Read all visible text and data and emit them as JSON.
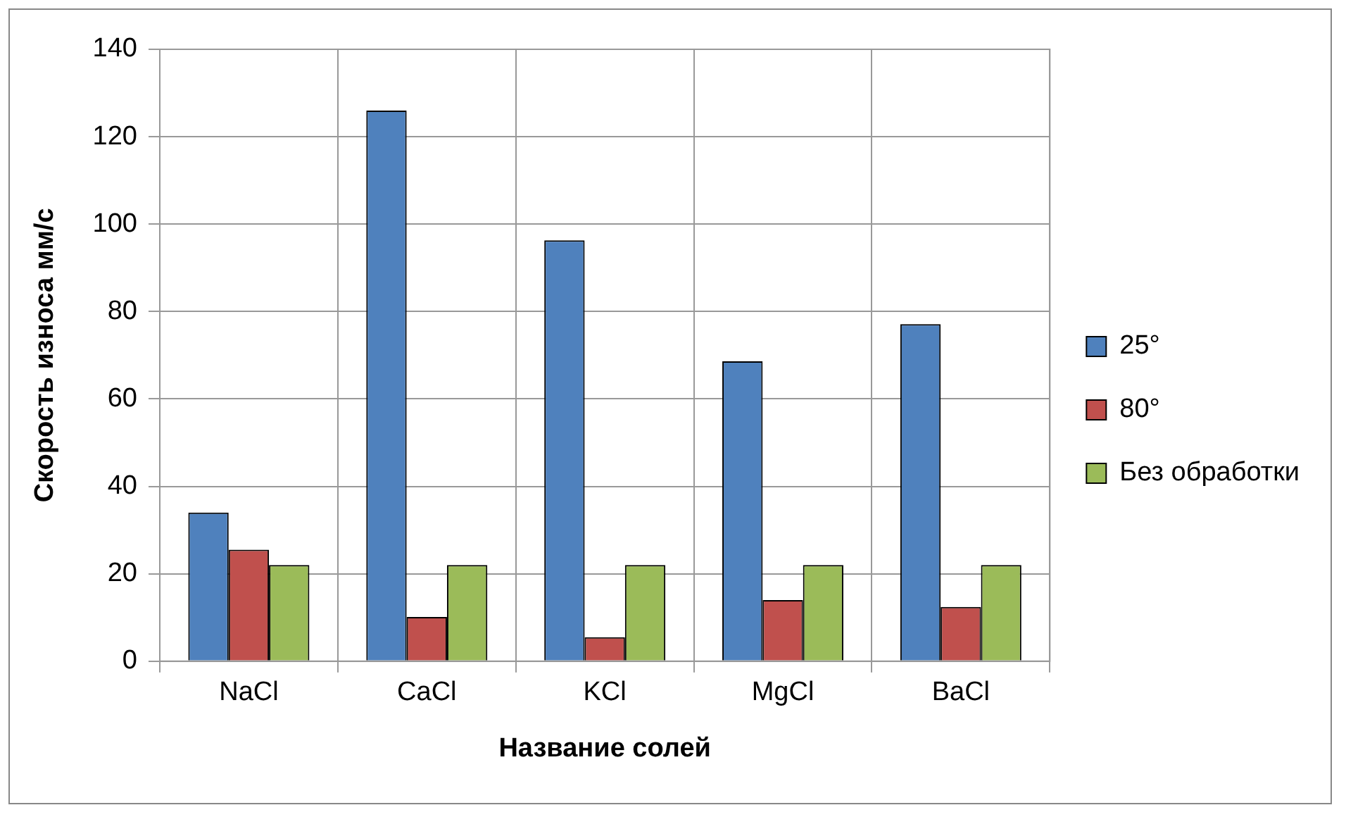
{
  "chart_data": {
    "type": "bar",
    "xlabel": "Название солей",
    "ylabel": "Скорость износа мм/с",
    "categories": [
      "NaCl",
      "CaCl",
      "KCl",
      "MgCl",
      "BaCl"
    ],
    "series": [
      {
        "name": "25°",
        "color": "#4f81bd",
        "values": [
          34,
          126,
          96.3,
          68.6,
          77.1
        ]
      },
      {
        "name": "80°",
        "color": "#c0504d",
        "values": [
          25.5,
          10.1,
          5.5,
          14,
          12.4
        ]
      },
      {
        "name": "Без обработки",
        "color": "#9bbb59",
        "values": [
          22,
          22,
          22,
          22,
          22
        ]
      }
    ],
    "ylim": [
      0,
      140
    ],
    "yticks": [
      0,
      20,
      40,
      60,
      80,
      100,
      120,
      140
    ],
    "grid": true,
    "legend": "right"
  }
}
